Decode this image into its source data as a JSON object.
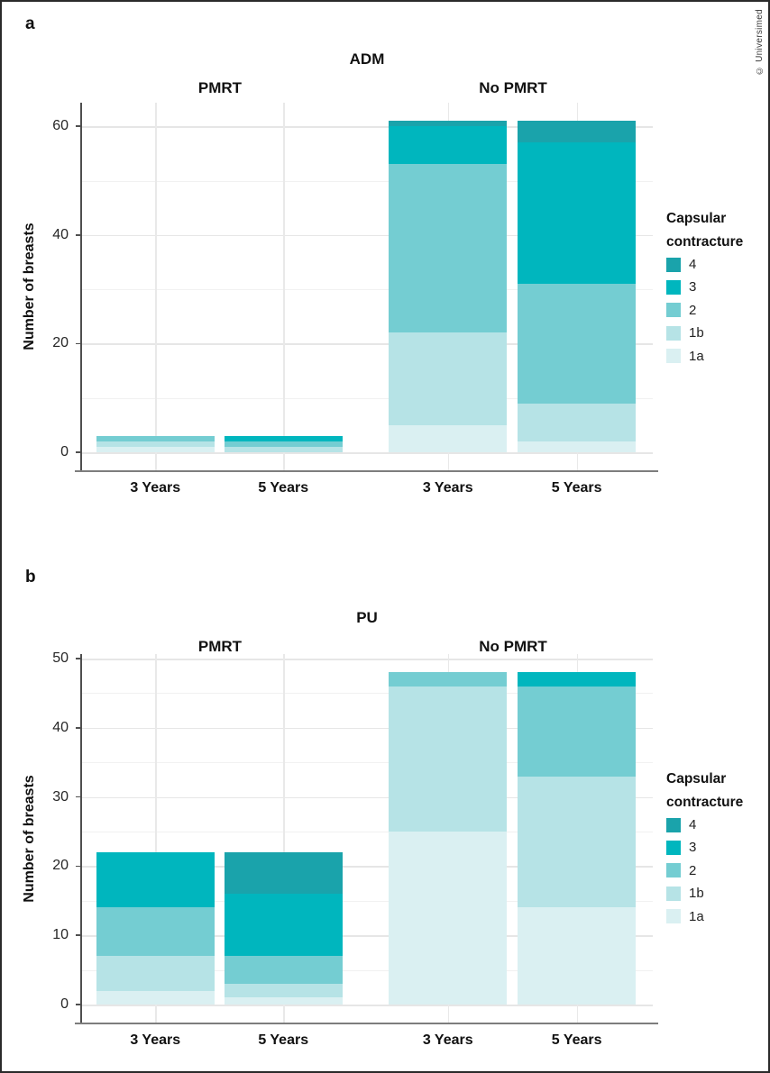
{
  "page": {
    "watermark": "© Universimed",
    "background_color": "#ffffff",
    "border_color": "#2a2a2a"
  },
  "legend": {
    "title": "Capsular contracture",
    "items": [
      {
        "label": "4",
        "color": "#1aa3ab"
      },
      {
        "label": "3",
        "color": "#00b6be"
      },
      {
        "label": "2",
        "color": "#74cdd2"
      },
      {
        "label": "1b",
        "color": "#b6e3e6"
      },
      {
        "label": "1a",
        "color": "#daf0f2"
      }
    ]
  },
  "chart_data": [
    {
      "type": "bar",
      "stacked": true,
      "panel_label": "a",
      "title": "ADM",
      "ylabel": "Number of breasts",
      "ylim": [
        0,
        64
      ],
      "yticks": [
        0,
        20,
        40,
        60
      ],
      "minor_gridlines": [
        10,
        30,
        50
      ],
      "grid": true,
      "legend_position": "right",
      "legend_title": "Capsular contracture",
      "series_order_bottom_to_top": [
        "1a",
        "1b",
        "2",
        "3",
        "4"
      ],
      "facets": [
        {
          "label": "PMRT",
          "bars": [
            {
              "category": "3 Years",
              "total": 3,
              "values": {
                "1a": 1,
                "1b": 1,
                "2": 1,
                "3": 0,
                "4": 0
              }
            },
            {
              "category": "5 Years",
              "total": 3,
              "values": {
                "1a": 0,
                "1b": 1,
                "2": 1,
                "3": 1,
                "4": 0
              }
            }
          ]
        },
        {
          "label": "No PMRT",
          "bars": [
            {
              "category": "3 Years",
              "total": 61,
              "values": {
                "1a": 5,
                "1b": 17,
                "2": 31,
                "3": 7,
                "4": 1
              }
            },
            {
              "category": "5 Years",
              "total": 61,
              "values": {
                "1a": 2,
                "1b": 7,
                "2": 22,
                "3": 26,
                "4": 4
              }
            }
          ]
        }
      ]
    },
    {
      "type": "bar",
      "stacked": true,
      "panel_label": "b",
      "title": "PU",
      "ylabel": "Number of breasts",
      "ylim": [
        0,
        52
      ],
      "yticks": [
        0,
        10,
        20,
        30,
        40,
        50
      ],
      "minor_gridlines": [
        5,
        15,
        25,
        35,
        45
      ],
      "grid": true,
      "legend_position": "right",
      "legend_title": "Capsular contracture",
      "series_order_bottom_to_top": [
        "1a",
        "1b",
        "2",
        "3",
        "4"
      ],
      "facets": [
        {
          "label": "PMRT",
          "bars": [
            {
              "category": "3 Years",
              "total": 22,
              "values": {
                "1a": 2,
                "1b": 5,
                "2": 7,
                "3": 8,
                "4": 0
              }
            },
            {
              "category": "5 Years",
              "total": 22,
              "values": {
                "1a": 1,
                "1b": 2,
                "2": 4,
                "3": 9,
                "4": 6
              }
            }
          ]
        },
        {
          "label": "No PMRT",
          "bars": [
            {
              "category": "3 Years",
              "total": 48,
              "values": {
                "1a": 25,
                "1b": 21,
                "2": 2,
                "3": 0,
                "4": 0
              }
            },
            {
              "category": "5 Years",
              "total": 48,
              "values": {
                "1a": 14,
                "1b": 19,
                "2": 13,
                "3": 2,
                "4": 0
              }
            }
          ]
        }
      ]
    }
  ]
}
